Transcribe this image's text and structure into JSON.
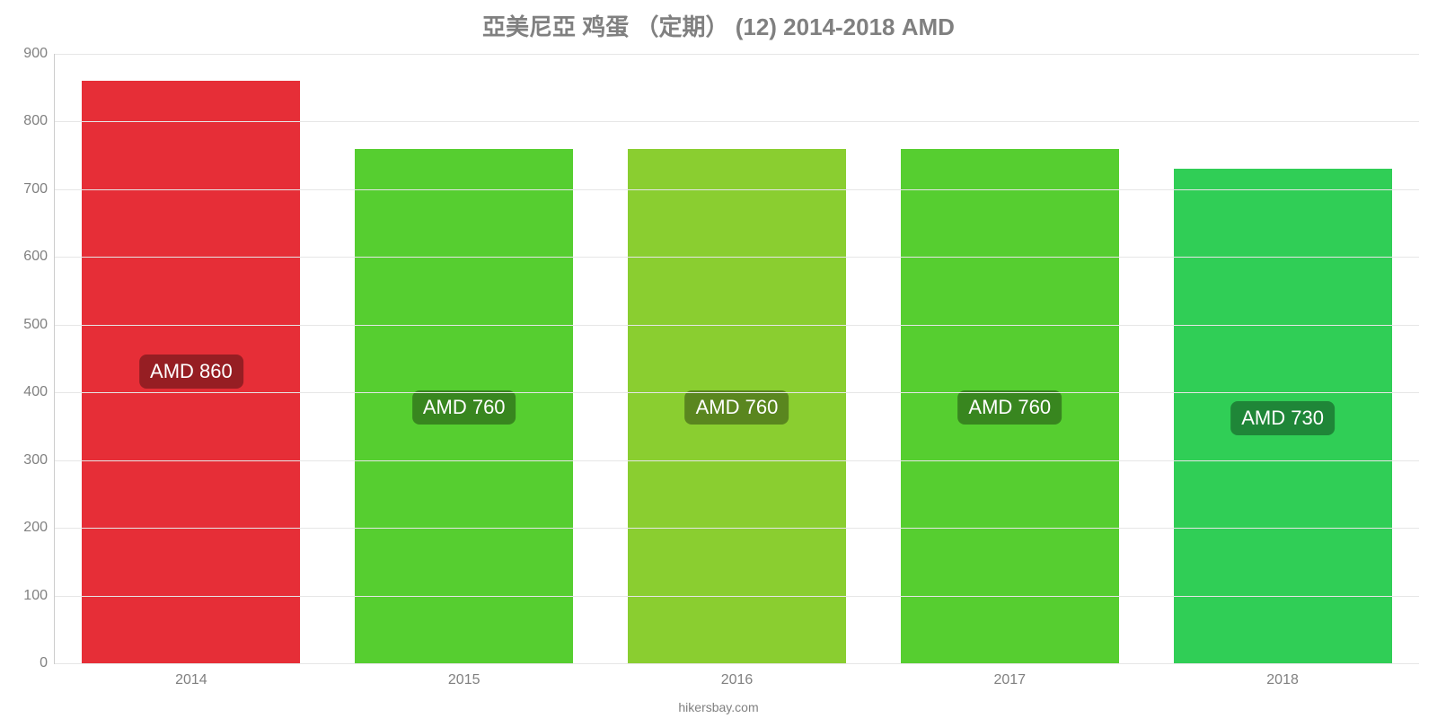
{
  "chart": {
    "type": "bar",
    "title": "亞美尼亞 鸡蛋 （定期） (12) 2014-2018 AMD",
    "title_fontsize": 26,
    "title_color": "#808080",
    "background_color": "#ffffff",
    "axis_color": "#cccccc",
    "grid_color": "#e6e6e6",
    "tick_color": "#808080",
    "tick_fontsize": 16,
    "bar_label_fontsize": 22,
    "bar_label_bg": "rgba(0,0,0,0.35)",
    "ylim": [
      0,
      900
    ],
    "ytick_step": 100,
    "bar_width_pct": 80,
    "footer": "hikersbay.com",
    "footer_fontsize": 14,
    "footer_color": "#808080",
    "label_vertical_pos_pct": 47,
    "categories": [
      "2014",
      "2015",
      "2016",
      "2017",
      "2018"
    ],
    "values": [
      860,
      760,
      760,
      760,
      730
    ],
    "value_labels": [
      "AMD 860",
      "AMD 760",
      "AMD 760",
      "AMD 760",
      "AMD 730"
    ],
    "bar_colors": [
      "#e62e37",
      "#56ce30",
      "#8ace30",
      "#56ce30",
      "#30ce56"
    ]
  }
}
